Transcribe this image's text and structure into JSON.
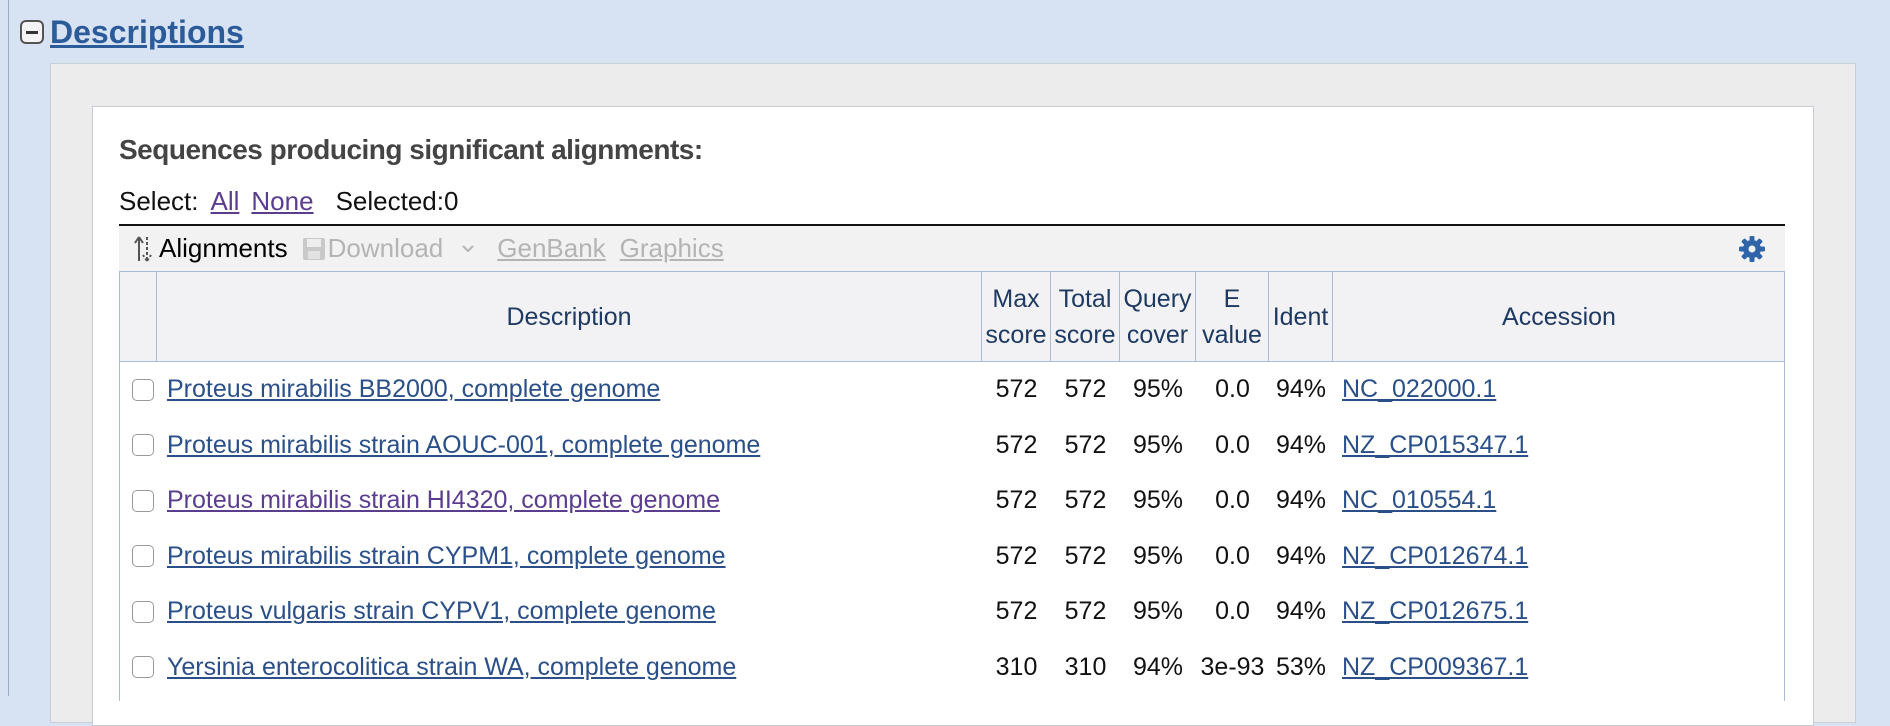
{
  "section": {
    "title": "Descriptions"
  },
  "heading": "Sequences producing significant alignments:",
  "select": {
    "label": "Select:",
    "all": "All",
    "none": "None",
    "selected": "Selected:0"
  },
  "toolbar": {
    "alignments": "Alignments",
    "download": "Download",
    "genbank": "GenBank",
    "graphics": "Graphics"
  },
  "columns": {
    "description": "Description",
    "max_score": [
      "Max",
      "score"
    ],
    "total_score": [
      "Total",
      "score"
    ],
    "query_cover": [
      "Query",
      "cover"
    ],
    "e_value": [
      "E",
      "value"
    ],
    "ident": "Ident",
    "accession": "Accession"
  },
  "rows": [
    {
      "description": "Proteus mirabilis BB2000, complete genome",
      "max": "572",
      "total": "572",
      "cover": "95%",
      "evalue": "0.0",
      "ident": "94%",
      "accession": "NC_022000.1",
      "visited": false
    },
    {
      "description": "Proteus mirabilis strain AOUC-001, complete genome",
      "max": "572",
      "total": "572",
      "cover": "95%",
      "evalue": "0.0",
      "ident": "94%",
      "accession": "NZ_CP015347.1",
      "visited": false
    },
    {
      "description": "Proteus mirabilis strain HI4320, complete genome",
      "max": "572",
      "total": "572",
      "cover": "95%",
      "evalue": "0.0",
      "ident": "94%",
      "accession": "NC_010554.1",
      "visited": true
    },
    {
      "description": "Proteus mirabilis strain CYPM1, complete genome",
      "max": "572",
      "total": "572",
      "cover": "95%",
      "evalue": "0.0",
      "ident": "94%",
      "accession": "NZ_CP012674.1",
      "visited": false
    },
    {
      "description": "Proteus vulgaris strain CYPV1, complete genome",
      "max": "572",
      "total": "572",
      "cover": "95%",
      "evalue": "0.0",
      "ident": "94%",
      "accession": "NZ_CP012675.1",
      "visited": false
    },
    {
      "description": "Yersinia enterocolitica strain WA, complete genome",
      "max": "310",
      "total": "310",
      "cover": "94%",
      "evalue": "3e-93",
      "ident": "53%",
      "accession": "NZ_CP009367.1",
      "visited": false
    }
  ]
}
